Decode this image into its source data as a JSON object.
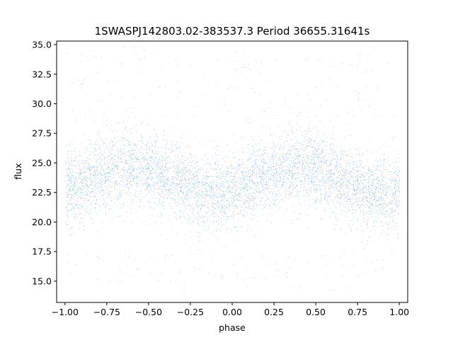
{
  "chart_data": {
    "type": "scatter",
    "title": "1SWASPJ142803.02-383537.3 Period 36655.31641s",
    "xlabel": "phase",
    "ylabel": "flux",
    "xlim": [
      -1.05,
      1.05
    ],
    "ylim": [
      13.2,
      35.3
    ],
    "xticks": [
      -1.0,
      -0.75,
      -0.5,
      -0.25,
      0.0,
      0.25,
      0.5,
      0.75,
      1.0
    ],
    "xtick_labels": [
      "−1.00",
      "−0.75",
      "−0.50",
      "−0.25",
      "0.00",
      "0.25",
      "0.50",
      "0.75",
      "1.00"
    ],
    "yticks": [
      15.0,
      17.5,
      20.0,
      22.5,
      25.0,
      27.5,
      30.0,
      32.5,
      35.0
    ],
    "ytick_labels": [
      "15.0",
      "17.5",
      "20.0",
      "22.5",
      "25.0",
      "27.5",
      "30.0",
      "32.5",
      "35.0"
    ],
    "grid": false,
    "series": [
      {
        "color": "#1f77b4",
        "phase_range": [
          -1.0,
          1.0
        ],
        "mean_flux": 23.6,
        "amplitude": 1.1,
        "curve_phase_of_maximum": [
          -0.6,
          0.4
        ],
        "curve_phase_of_minimum": [
          -0.1,
          0.9
        ],
        "core_scatter_sd": 1.6,
        "point_count_approx": 80000,
        "outlier_flux_range": [
          14.2,
          35.0
        ]
      }
    ]
  }
}
